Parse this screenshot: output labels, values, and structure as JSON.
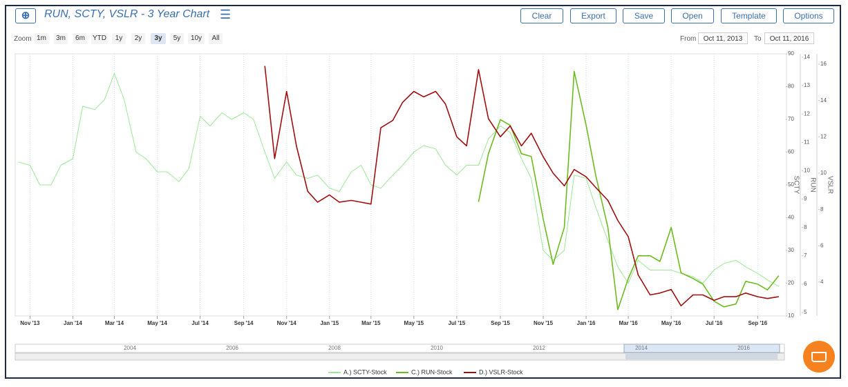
{
  "toolbar": {
    "title": "RUN, SCTY, VSLR - 3 Year Chart",
    "buttons": [
      "Clear",
      "Export",
      "Save",
      "Open",
      "Template",
      "Options"
    ]
  },
  "zoom": {
    "label": "Zoom",
    "options": [
      "1m",
      "3m",
      "6m",
      "YTD",
      "1y",
      "2y",
      "3y",
      "5y",
      "10y",
      "All"
    ],
    "active": "3y"
  },
  "range": {
    "from_label": "From",
    "from": "Oct 11, 2013",
    "to_label": "To",
    "to": "Oct 11, 2016"
  },
  "navigator": {
    "labels": [
      "2004",
      "2006",
      "2008",
      "2010",
      "2012",
      "2014",
      "2016"
    ]
  },
  "chart_data": {
    "type": "line",
    "x": [
      "2013-10-15",
      "2013-11-01",
      "2013-11-15",
      "2013-12-01",
      "2013-12-15",
      "2014-01-01",
      "2014-01-15",
      "2014-02-01",
      "2014-02-15",
      "2014-03-01",
      "2014-03-15",
      "2014-04-01",
      "2014-04-15",
      "2014-05-01",
      "2014-05-15",
      "2014-06-01",
      "2014-06-15",
      "2014-07-01",
      "2014-07-15",
      "2014-08-01",
      "2014-08-15",
      "2014-09-01",
      "2014-09-15",
      "2014-10-01",
      "2014-10-15",
      "2014-11-01",
      "2014-11-15",
      "2014-12-01",
      "2014-12-15",
      "2015-01-01",
      "2015-01-15",
      "2015-02-01",
      "2015-02-15",
      "2015-03-01",
      "2015-03-15",
      "2015-04-01",
      "2015-04-15",
      "2015-05-01",
      "2015-05-15",
      "2015-06-01",
      "2015-06-15",
      "2015-07-01",
      "2015-07-15",
      "2015-08-01",
      "2015-08-15",
      "2015-09-01",
      "2015-09-15",
      "2015-10-01",
      "2015-10-15",
      "2015-11-01",
      "2015-11-15",
      "2015-12-01",
      "2015-12-15",
      "2016-01-01",
      "2016-01-15",
      "2016-02-01",
      "2016-02-15",
      "2016-03-01",
      "2016-03-15",
      "2016-04-01",
      "2016-04-15",
      "2016-05-01",
      "2016-05-15",
      "2016-06-01",
      "2016-06-15",
      "2016-07-01",
      "2016-07-15",
      "2016-08-01",
      "2016-08-15",
      "2016-09-01",
      "2016-09-15",
      "2016-10-01"
    ],
    "series": [
      {
        "name": "A.) SCTY-Stock",
        "color": "#9be895",
        "axis": "y",
        "values": [
          57,
          56,
          50,
          50,
          56,
          58,
          74,
          73,
          76,
          84,
          76,
          60,
          58,
          54,
          54,
          51,
          55,
          71,
          68,
          72,
          70,
          72,
          70,
          60,
          52,
          57,
          53,
          52,
          53,
          49,
          48,
          54,
          56,
          50,
          49,
          53,
          56,
          60,
          62,
          61,
          56,
          53,
          56,
          56,
          64,
          68,
          66,
          58,
          52,
          30,
          27,
          30,
          53,
          52,
          43,
          33,
          25,
          20,
          27,
          24,
          24,
          24,
          23,
          22,
          20,
          24,
          26,
          27,
          25,
          23,
          21,
          19
        ]
      },
      {
        "name": "C.) RUN-Stock",
        "color": "#6cbb1e",
        "axis": "y2",
        "values": [
          null,
          null,
          null,
          null,
          null,
          null,
          null,
          null,
          null,
          null,
          null,
          null,
          null,
          null,
          null,
          null,
          null,
          null,
          null,
          null,
          null,
          null,
          null,
          null,
          null,
          null,
          null,
          null,
          null,
          null,
          null,
          null,
          null,
          null,
          null,
          null,
          null,
          null,
          null,
          null,
          null,
          null,
          null,
          8.9,
          10.6,
          11.8,
          11.6,
          10.6,
          10.5,
          8.3,
          6.7,
          8.0,
          13.5,
          11.6,
          9.8,
          8.0,
          5.1,
          6.2,
          7.0,
          7.0,
          6.8,
          8.0,
          6.4,
          6.2,
          6.0,
          5.4,
          5.2,
          5.3,
          6.1,
          6.0,
          5.8,
          6.3
        ]
      },
      {
        "name": "D.) VSLR-Stock",
        "color": "#a00d0d",
        "axis": "y3",
        "values": [
          null,
          null,
          null,
          null,
          null,
          null,
          null,
          null,
          null,
          null,
          null,
          null,
          null,
          null,
          null,
          null,
          null,
          null,
          null,
          null,
          null,
          null,
          null,
          15.9,
          10.8,
          14.5,
          11.5,
          9.0,
          8.4,
          8.8,
          8.4,
          8.5,
          8.4,
          8.3,
          12.5,
          12.9,
          13.9,
          14.5,
          14.2,
          14.5,
          13.8,
          12.0,
          11.5,
          15.7,
          13.0,
          12.0,
          12.6,
          11.5,
          12.2,
          10.9,
          10.0,
          9.3,
          10.2,
          9.8,
          9.2,
          8.5,
          7.4,
          6.5,
          4.4,
          3.3,
          3.4,
          3.6,
          2.7,
          3.3,
          3.3,
          3.0,
          3.2,
          3.2,
          3.4,
          3.2,
          3.1,
          3.2
        ]
      }
    ],
    "xlim": [
      "2013-10-11",
      "2016-10-11"
    ],
    "xticks": [
      {
        "value": "2013-11-01",
        "label": "Nov '13"
      },
      {
        "value": "2014-01-01",
        "label": "Jan '14"
      },
      {
        "value": "2014-03-01",
        "label": "Mar '14"
      },
      {
        "value": "2014-05-01",
        "label": "May '14"
      },
      {
        "value": "2014-07-01",
        "label": "Jul '14"
      },
      {
        "value": "2014-09-01",
        "label": "Sep '14"
      },
      {
        "value": "2014-11-01",
        "label": "Nov '14"
      },
      {
        "value": "2015-01-01",
        "label": "Jan '15"
      },
      {
        "value": "2015-03-01",
        "label": "Mar '15"
      },
      {
        "value": "2015-05-01",
        "label": "May '15"
      },
      {
        "value": "2015-07-01",
        "label": "Jul '15"
      },
      {
        "value": "2015-09-01",
        "label": "Sep '15"
      },
      {
        "value": "2015-11-01",
        "label": "Nov '15"
      },
      {
        "value": "2016-01-01",
        "label": "Jan '16"
      },
      {
        "value": "2016-03-01",
        "label": "Mar '16"
      },
      {
        "value": "2016-05-01",
        "label": "May '16"
      },
      {
        "value": "2016-07-01",
        "label": "Jul '16"
      },
      {
        "value": "2016-09-01",
        "label": "Sep '16"
      }
    ],
    "y_label": "SCTY",
    "ylim": [
      10,
      90
    ],
    "yticks": [
      10,
      20,
      30,
      40,
      50,
      60,
      70,
      80,
      90
    ],
    "y2_label": "RUN",
    "y2lim": [
      4.88,
      14.12
    ],
    "y2ticks": [
      5,
      6,
      7,
      8,
      9,
      10,
      11,
      12,
      13,
      14
    ],
    "y3_label": "VSLR",
    "y3lim": [
      2.14,
      16.57
    ],
    "y3ticks": [
      4,
      6,
      8,
      10,
      12,
      14,
      16
    ],
    "grid": "x"
  }
}
